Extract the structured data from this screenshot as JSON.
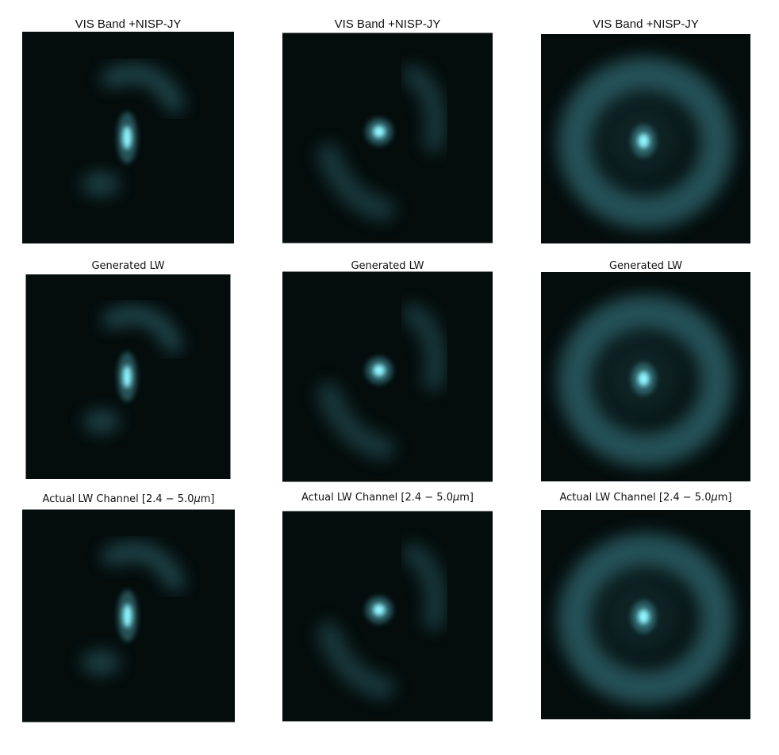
{
  "rows": [
    {
      "title": "VIS Band +NISP-JY"
    },
    {
      "title": "Generated LW"
    },
    {
      "title_pre": "Actual LW Channel [2.4 − 5.0",
      "title_mu": "μ",
      "title_post": "m]"
    }
  ],
  "colors": {
    "background": "#040c0c",
    "ring": "#3f8a94",
    "core": "#8ff6ff"
  }
}
